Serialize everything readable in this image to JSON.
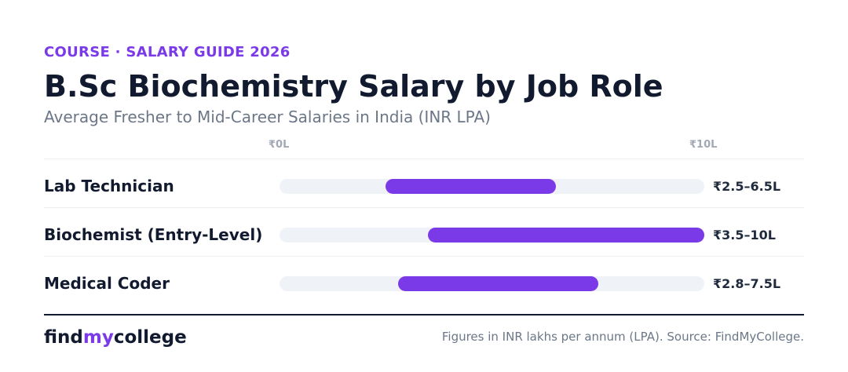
{
  "header": {
    "eyebrow": "COURSE · SALARY GUIDE 2026",
    "title": "B.Sc Biochemistry Salary by Job Role",
    "subtitle": "Average Fresher to Mid-Career Salaries in India (INR LPA)"
  },
  "colors": {
    "accent": "#7b3ae8",
    "track": "#eff3f8",
    "text": "#111a2e",
    "muted": "#6b7788"
  },
  "chart_data": {
    "type": "bar",
    "orientation": "horizontal-range",
    "title": "B.Sc Biochemistry Salary by Job Role",
    "subtitle": "Average Fresher to Mid-Career Salaries in India (INR LPA)",
    "xlim": [
      0,
      10
    ],
    "tick_labels": [
      "₹0L",
      "₹10L"
    ],
    "categories": [
      "Lab Technician",
      "Biochemist (Entry-Level)",
      "Medical Coder"
    ],
    "ranges": [
      [
        2.5,
        6.5
      ],
      [
        3.5,
        10
      ],
      [
        2.8,
        7.5
      ]
    ],
    "range_labels": [
      "₹2.5–6.5L",
      "₹3.5–10L",
      "₹2.8–7.5L"
    ],
    "grid": false,
    "legend": "none"
  },
  "footer": {
    "logo_part1": "find",
    "logo_part2": "my",
    "logo_part3": "college",
    "source": "Figures in INR lakhs per annum (LPA). Source: FindMyCollege."
  }
}
